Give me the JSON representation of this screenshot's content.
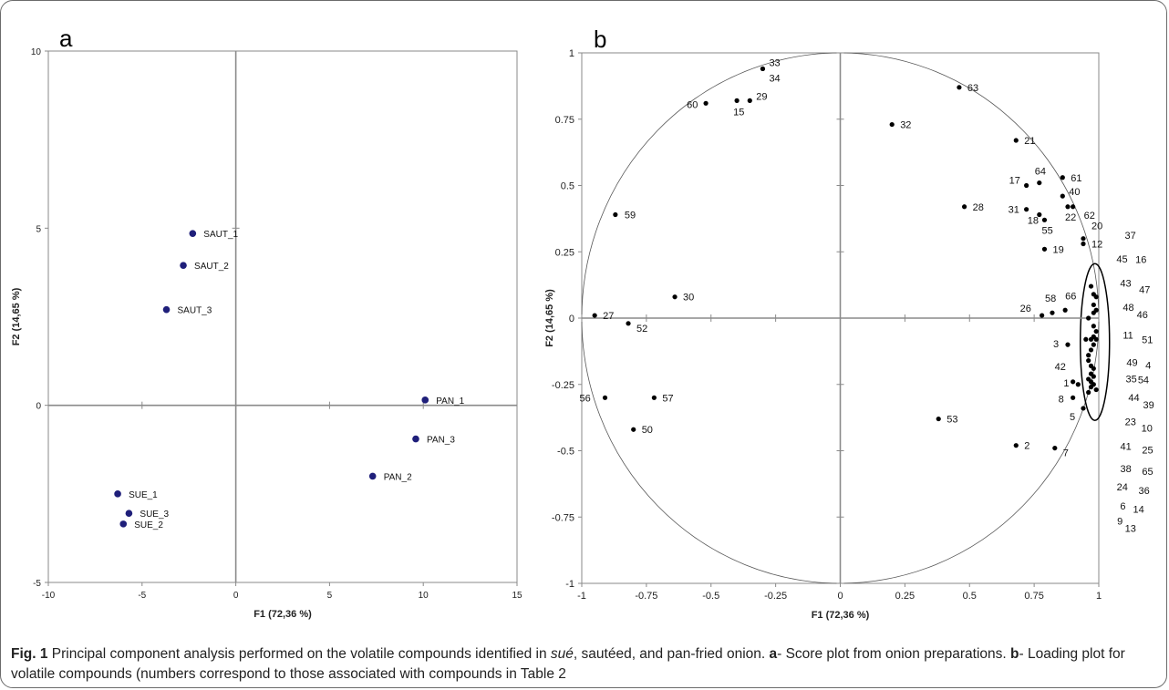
{
  "caption": {
    "runs": [
      {
        "text": "Fig. 1",
        "style": "bold"
      },
      {
        "text": " Principal component analysis performed on the volatile compounds identified in ",
        "style": "normal"
      },
      {
        "text": "sué",
        "style": "italic"
      },
      {
        "text": ", sautéed, and pan-fried onion. ",
        "style": "normal"
      },
      {
        "text": "a",
        "style": "bold"
      },
      {
        "text": "- Score plot from onion preparations. ",
        "style": "normal"
      },
      {
        "text": "b",
        "style": "bold"
      },
      {
        "text": "- Loading plot for volatile compounds (numbers correspond to those associated with compounds in Table 2",
        "style": "normal"
      }
    ]
  },
  "chart_data": [
    {
      "panel": "a",
      "type": "scatter",
      "xlabel": "F1 (72,36 %)",
      "ylabel": "F2 (14,65 %)",
      "xlim": [
        -10,
        15
      ],
      "ylim": [
        -5,
        10
      ],
      "xticks": [
        -10,
        -5,
        0,
        5,
        10,
        15
      ],
      "yticks": [
        -5,
        0,
        5,
        10
      ],
      "grid": false,
      "marker_color": "#1f1f7a",
      "points": [
        {
          "label": "SAUT_1",
          "x": -2.3,
          "y": 4.85
        },
        {
          "label": "SAUT_2",
          "x": -2.8,
          "y": 3.95
        },
        {
          "label": "SAUT_3",
          "x": -3.7,
          "y": 2.7
        },
        {
          "label": "PAN_1",
          "x": 10.1,
          "y": 0.15
        },
        {
          "label": "PAN_3",
          "x": 9.6,
          "y": -0.95
        },
        {
          "label": "PAN_2",
          "x": 7.3,
          "y": -2.0
        },
        {
          "label": "SUE_1",
          "x": -6.3,
          "y": -2.5
        },
        {
          "label": "SUE_3",
          "x": -5.7,
          "y": -3.05
        },
        {
          "label": "SUE_2",
          "x": -6.0,
          "y": -3.35
        }
      ]
    },
    {
      "panel": "b",
      "type": "scatter",
      "xlabel": "F1 (72,36 %)",
      "ylabel": "F2 (14,65 %)",
      "xlim": [
        -1,
        1
      ],
      "ylim": [
        -1,
        1
      ],
      "xticks": [
        "-1",
        "-0.75",
        "-0.5",
        "-0.25",
        "0",
        "0.25",
        "0.5",
        "0.75",
        "1"
      ],
      "yticks": [
        "-1",
        "-0.75",
        "-0.5",
        "-0.25",
        "0",
        "0.25",
        "0.5",
        "0.75",
        "1"
      ],
      "grid": false,
      "unit_circle": true,
      "marker_color": "#000000",
      "points": [
        {
          "label": "33",
          "x": -0.3,
          "y": 0.94
        },
        {
          "label": "34",
          "x": -0.3,
          "y": 0.94
        },
        {
          "label": "60",
          "x": -0.52,
          "y": 0.81
        },
        {
          "label": "15",
          "x": -0.4,
          "y": 0.82
        },
        {
          "label": "29",
          "x": -0.35,
          "y": 0.82
        },
        {
          "label": "59",
          "x": -0.87,
          "y": 0.39
        },
        {
          "label": "30",
          "x": -0.64,
          "y": 0.08
        },
        {
          "label": "27",
          "x": -0.95,
          "y": 0.01
        },
        {
          "label": "52",
          "x": -0.82,
          "y": -0.02
        },
        {
          "label": "56",
          "x": -0.91,
          "y": -0.3
        },
        {
          "label": "57",
          "x": -0.72,
          "y": -0.3
        },
        {
          "label": "50",
          "x": -0.8,
          "y": -0.42
        },
        {
          "label": "63",
          "x": 0.46,
          "y": 0.87
        },
        {
          "label": "32",
          "x": 0.2,
          "y": 0.73
        },
        {
          "label": "21",
          "x": 0.68,
          "y": 0.67
        },
        {
          "label": "17",
          "x": 0.72,
          "y": 0.5
        },
        {
          "label": "64",
          "x": 0.77,
          "y": 0.51
        },
        {
          "label": "61",
          "x": 0.86,
          "y": 0.53
        },
        {
          "label": "40",
          "x": 0.86,
          "y": 0.46
        },
        {
          "label": "22",
          "x": 0.88,
          "y": 0.42
        },
        {
          "label": "62",
          "x": 0.9,
          "y": 0.42
        },
        {
          "label": "31",
          "x": 0.72,
          "y": 0.41
        },
        {
          "label": "18",
          "x": 0.77,
          "y": 0.39
        },
        {
          "label": "55",
          "x": 0.79,
          "y": 0.37
        },
        {
          "label": "28",
          "x": 0.48,
          "y": 0.42
        },
        {
          "label": "20",
          "x": 0.94,
          "y": 0.3
        },
        {
          "label": "12",
          "x": 0.94,
          "y": 0.28
        },
        {
          "label": "19",
          "x": 0.79,
          "y": 0.26
        },
        {
          "label": "26",
          "x": 0.78,
          "y": 0.01
        },
        {
          "label": "58",
          "x": 0.82,
          "y": 0.02
        },
        {
          "label": "66",
          "x": 0.87,
          "y": 0.03
        },
        {
          "label": "3",
          "x": 0.88,
          "y": -0.1
        },
        {
          "label": "42",
          "x": 0.9,
          "y": -0.24
        },
        {
          "label": "1",
          "x": 0.92,
          "y": -0.25
        },
        {
          "label": "8",
          "x": 0.9,
          "y": -0.3
        },
        {
          "label": "5",
          "x": 0.94,
          "y": -0.34
        },
        {
          "label": "53",
          "x": 0.38,
          "y": -0.38
        },
        {
          "label": "2",
          "x": 0.68,
          "y": -0.48
        },
        {
          "label": "7",
          "x": 0.83,
          "y": -0.49
        },
        {
          "label": "37",
          "x": 0.97,
          "y": 0.12
        },
        {
          "label": "45",
          "x": 0.98,
          "y": 0.09
        },
        {
          "label": "16",
          "x": 0.99,
          "y": 0.08
        },
        {
          "label": "43",
          "x": 0.98,
          "y": 0.05
        },
        {
          "label": "47",
          "x": 0.99,
          "y": 0.03
        },
        {
          "label": "48",
          "x": 0.98,
          "y": 0.02
        },
        {
          "label": "46",
          "x": 0.96,
          "y": 0.0
        },
        {
          "label": "11",
          "x": 0.98,
          "y": -0.03
        },
        {
          "label": "51",
          "x": 0.99,
          "y": -0.05
        },
        {
          "label": "49",
          "x": 0.98,
          "y": -0.07
        },
        {
          "label": "4",
          "x": 0.99,
          "y": -0.08
        },
        {
          "label": "35",
          "x": 0.97,
          "y": -0.08
        },
        {
          "label": "54",
          "x": 0.95,
          "y": -0.08
        },
        {
          "label": "44",
          "x": 0.98,
          "y": -0.1
        },
        {
          "label": "39",
          "x": 0.97,
          "y": -0.12
        },
        {
          "label": "23",
          "x": 0.96,
          "y": -0.14
        },
        {
          "label": "10",
          "x": 0.96,
          "y": -0.16
        },
        {
          "label": "41",
          "x": 0.97,
          "y": -0.18
        },
        {
          "label": "25",
          "x": 0.98,
          "y": -0.19
        },
        {
          "label": "38",
          "x": 0.97,
          "y": -0.21
        },
        {
          "label": "65",
          "x": 0.98,
          "y": -0.22
        },
        {
          "label": "24",
          "x": 0.96,
          "y": -0.23
        },
        {
          "label": "36",
          "x": 0.97,
          "y": -0.24
        },
        {
          "label": "6",
          "x": 0.98,
          "y": -0.25
        },
        {
          "label": "14",
          "x": 0.97,
          "y": -0.26
        },
        {
          "label": "9",
          "x": 0.99,
          "y": -0.27
        },
        {
          "label": "13",
          "x": 0.96,
          "y": -0.28
        }
      ]
    }
  ]
}
